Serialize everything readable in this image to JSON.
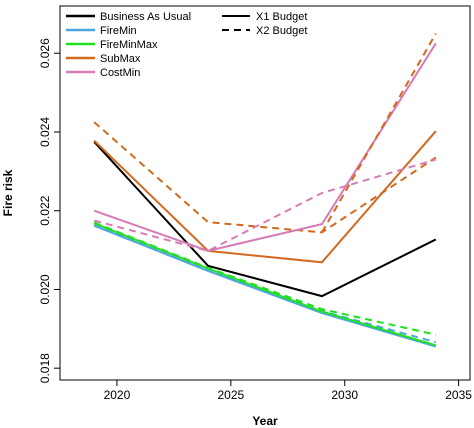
{
  "chart_data": {
    "type": "line",
    "xlabel": "Year",
    "ylabel": "Fire risk",
    "xlim": [
      2017.5,
      2035.5
    ],
    "ylim": [
      0.0177,
      0.0272
    ],
    "x_ticks": [
      2020,
      2025,
      2030,
      2035
    ],
    "y_ticks": [
      0.018,
      0.02,
      0.022,
      0.024,
      0.026
    ],
    "y_tick_labels": [
      "0.018",
      "0.020",
      "0.022",
      "0.024",
      "0.026"
    ],
    "x": [
      2019,
      2024,
      2029,
      2034
    ],
    "legend_position": "top-left",
    "legend_strategies": [
      {
        "label": "Business As Usual",
        "color": "#000000"
      },
      {
        "label": "FireMin",
        "color": "#4da6e0"
      },
      {
        "label": "FireMinMax",
        "color": "#22e022"
      },
      {
        "label": "SubMax",
        "color": "#d2691e"
      },
      {
        "label": "CostMin",
        "color": "#d67bb5"
      }
    ],
    "legend_budgets": [
      {
        "label": "X1 Budget",
        "dash": "solid"
      },
      {
        "label": "X2 Budget",
        "dash": "dashed"
      }
    ],
    "series": [
      {
        "name": "Business As Usual",
        "budget": "X1 Budget",
        "color": "#000000",
        "dash": "solid",
        "values": [
          0.02375,
          0.0206,
          0.01983,
          0.02127
        ]
      },
      {
        "name": "FireMin",
        "budget": "X1 Budget",
        "color": "#4da6e0",
        "dash": "solid",
        "values": [
          0.02162,
          0.02047,
          0.0194,
          0.01855
        ]
      },
      {
        "name": "FireMin",
        "budget": "X2 Budget",
        "color": "#4da6e0",
        "dash": "dashed",
        "values": [
          0.02164,
          0.02049,
          0.01945,
          0.01866
        ]
      },
      {
        "name": "FireMinMax",
        "budget": "X1 Budget",
        "color": "#22e022",
        "dash": "solid",
        "values": [
          0.02168,
          0.02053,
          0.01944,
          0.01858
        ]
      },
      {
        "name": "FireMinMax",
        "budget": "X2 Budget",
        "color": "#22e022",
        "dash": "dashed",
        "values": [
          0.0217,
          0.02055,
          0.0195,
          0.01885
        ]
      },
      {
        "name": "SubMax",
        "budget": "X1 Budget",
        "color": "#d2691e",
        "dash": "solid",
        "values": [
          0.02378,
          0.02098,
          0.02069,
          0.02402
        ]
      },
      {
        "name": "SubMax",
        "budget": "X2 Budget",
        "color": "#d2691e",
        "dash": "dashed",
        "values": [
          0.02425,
          0.02171,
          0.02145,
          0.02335
        ]
      },
      {
        "name": "CostMin",
        "budget": "X1 Budget",
        "color": "#d67bb5",
        "dash": "solid",
        "values": [
          0.022,
          0.02098,
          0.02166,
          0.02625
        ]
      },
      {
        "name": "CostMin",
        "budget": "X2 Budget",
        "color": "#d67bb5",
        "dash": "dashed",
        "values": [
          0.02175,
          0.02098,
          0.02245,
          0.0233
        ]
      },
      {
        "name": "Business As Usual",
        "budget": "X2 Budget",
        "color": "#d2691e",
        "dash": "dashed",
        "values": [
          null,
          null,
          null,
          0.0265
        ]
      }
    ]
  }
}
